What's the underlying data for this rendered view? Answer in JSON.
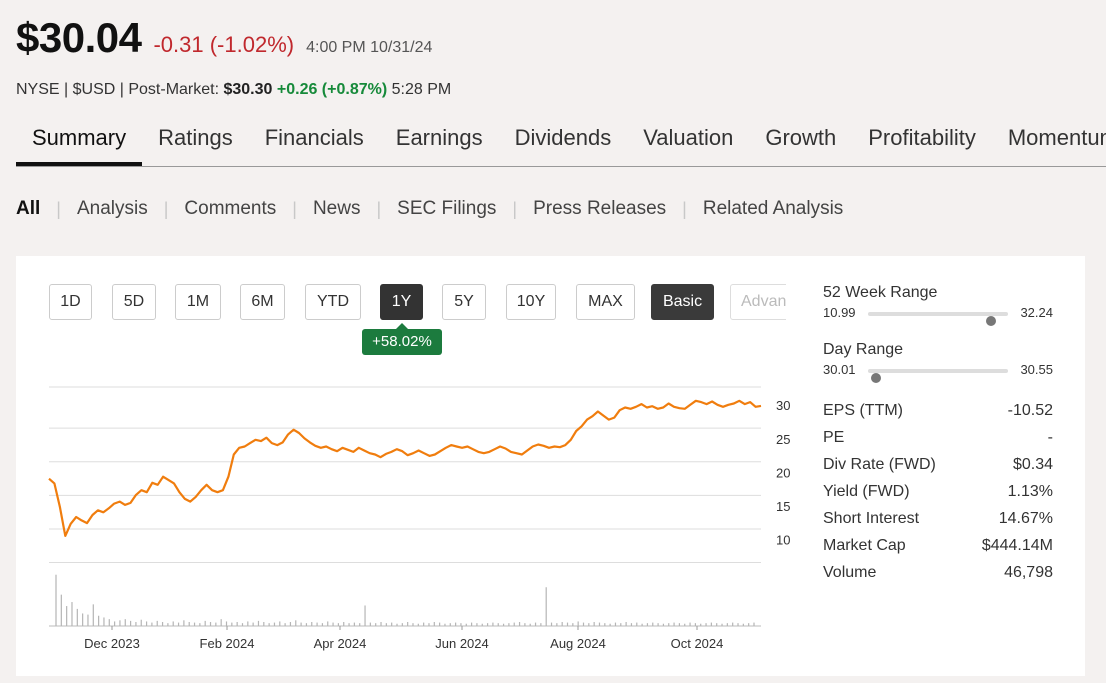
{
  "quote": {
    "price": "$30.04",
    "change": "-0.31 (-1.02%)",
    "time": "4:00 PM 10/31/24",
    "exchange_line": "NYSE | $USD | Post-Market:",
    "post_price": "$30.30",
    "post_change": "+0.26 (+0.87%)",
    "post_time": "5:28 PM"
  },
  "tabs": [
    "Summary",
    "Ratings",
    "Financials",
    "Earnings",
    "Dividends",
    "Valuation",
    "Growth",
    "Profitability",
    "Momentum"
  ],
  "filters": [
    "All",
    "Analysis",
    "Comments",
    "News",
    "SEC Filings",
    "Press Releases",
    "Related Analysis"
  ],
  "ranges": [
    "1D",
    "5D",
    "1M",
    "6M",
    "YTD",
    "1Y",
    "5Y",
    "10Y",
    "MAX"
  ],
  "active_range": "1Y",
  "mode_buttons": {
    "basic": "Basic",
    "advanced": "Advanced"
  },
  "range_change_badge": "+58.02%",
  "colors": {
    "line": "#f07d0e",
    "badge": "#1c7b3e",
    "negative": "#c0282d",
    "positive": "#168a3a"
  },
  "chart_data": {
    "type": "line",
    "x_labels": [
      "Dec 2023",
      "Feb 2024",
      "Apr 2024",
      "Jun 2024",
      "Aug 2024",
      "Oct 2024"
    ],
    "y_ticks": [
      10,
      15,
      20,
      25,
      30
    ],
    "ylim": [
      8,
      33
    ],
    "grid": true,
    "series": [
      {
        "values": [
          19.2,
          18.5,
          15.0,
          10.7,
          12.5,
          13.5,
          13.0,
          12.6,
          13.8,
          14.5,
          14.2,
          14.8,
          15.5,
          15.8,
          15.3,
          15.6,
          16.8,
          17.5,
          17.2,
          18.6,
          18.3,
          19.5,
          19.0,
          18.5,
          17.2,
          16.2,
          15.8,
          16.5,
          17.5,
          18.3,
          17.5,
          17.2,
          17.5,
          19.5,
          22.8,
          23.8,
          24.0,
          24.5,
          25.0,
          24.8,
          25.3,
          24.5,
          24.2,
          24.6,
          25.8,
          26.5,
          26.0,
          25.2,
          24.6,
          24.1,
          23.8,
          24.0,
          23.6,
          23.3,
          23.8,
          23.5,
          23.2,
          23.8,
          23.4,
          23.0,
          22.8,
          22.4,
          22.9,
          23.2,
          23.6,
          23.3,
          22.7,
          23.0,
          23.4,
          23.0,
          22.6,
          22.8,
          23.3,
          23.8,
          24.2,
          24.0,
          23.8,
          24.0,
          23.6,
          23.2,
          23.0,
          23.2,
          23.6,
          24.0,
          23.7,
          23.2,
          23.0,
          22.8,
          23.4,
          24.0,
          24.3,
          24.1,
          23.8,
          24.0,
          23.9,
          24.2,
          25.0,
          26.3,
          27.0,
          28.0,
          28.5,
          29.2,
          28.6,
          28.0,
          28.3,
          29.4,
          29.8,
          29.6,
          29.9,
          30.3,
          29.8,
          30.0,
          29.6,
          29.8,
          30.4,
          29.9,
          29.7,
          29.6,
          30.2,
          30.8,
          30.6,
          30.3,
          30.7,
          30.2,
          29.9,
          30.2,
          30.4,
          30.8,
          30.3,
          30.6,
          29.9,
          30.04
        ]
      }
    ],
    "volume": [
      0.9,
      0.55,
      0.35,
      0.42,
      0.3,
      0.22,
      0.2,
      0.38,
      0.18,
      0.15,
      0.12,
      0.08,
      0.1,
      0.12,
      0.09,
      0.07,
      0.11,
      0.08,
      0.06,
      0.09,
      0.07,
      0.05,
      0.08,
      0.06,
      0.1,
      0.07,
      0.06,
      0.05,
      0.09,
      0.07,
      0.06,
      0.12,
      0.08,
      0.06,
      0.07,
      0.05,
      0.08,
      0.06,
      0.09,
      0.07,
      0.05,
      0.06,
      0.08,
      0.05,
      0.07,
      0.1,
      0.06,
      0.05,
      0.07,
      0.06,
      0.05,
      0.08,
      0.06,
      0.05,
      0.07,
      0.05,
      0.06,
      0.05,
      0.36,
      0.06,
      0.05,
      0.07,
      0.05,
      0.06,
      0.04,
      0.05,
      0.07,
      0.05,
      0.04,
      0.06,
      0.05,
      0.07,
      0.06,
      0.04,
      0.05,
      0.06,
      0.05,
      0.04,
      0.06,
      0.05,
      0.04,
      0.05,
      0.06,
      0.05,
      0.04,
      0.05,
      0.06,
      0.07,
      0.05,
      0.04,
      0.06,
      0.05,
      0.68,
      0.06,
      0.05,
      0.07,
      0.06,
      0.05,
      0.08,
      0.06,
      0.05,
      0.07,
      0.06,
      0.05,
      0.04,
      0.06,
      0.05,
      0.07,
      0.05,
      0.06,
      0.04,
      0.05,
      0.06,
      0.05,
      0.04,
      0.05,
      0.06,
      0.05,
      0.04,
      0.06,
      0.05,
      0.04,
      0.05,
      0.06,
      0.05,
      0.04,
      0.05,
      0.06,
      0.05,
      0.04,
      0.05,
      0.06
    ]
  },
  "stats": {
    "week52": {
      "label": "52 Week Range",
      "low": "10.99",
      "high": "32.24",
      "position": 0.88
    },
    "day": {
      "label": "Day Range",
      "low": "30.01",
      "high": "30.55",
      "position": 0.06
    },
    "rows": [
      {
        "label": "EPS (TTM)",
        "value": "-10.52"
      },
      {
        "label": "PE",
        "value": "-"
      },
      {
        "label": "Div Rate (FWD)",
        "value": "$0.34"
      },
      {
        "label": "Yield (FWD)",
        "value": "1.13%"
      },
      {
        "label": "Short Interest",
        "value": "14.67%"
      },
      {
        "label": "Market Cap",
        "value": "$444.14M"
      },
      {
        "label": "Volume",
        "value": "46,798"
      }
    ]
  }
}
